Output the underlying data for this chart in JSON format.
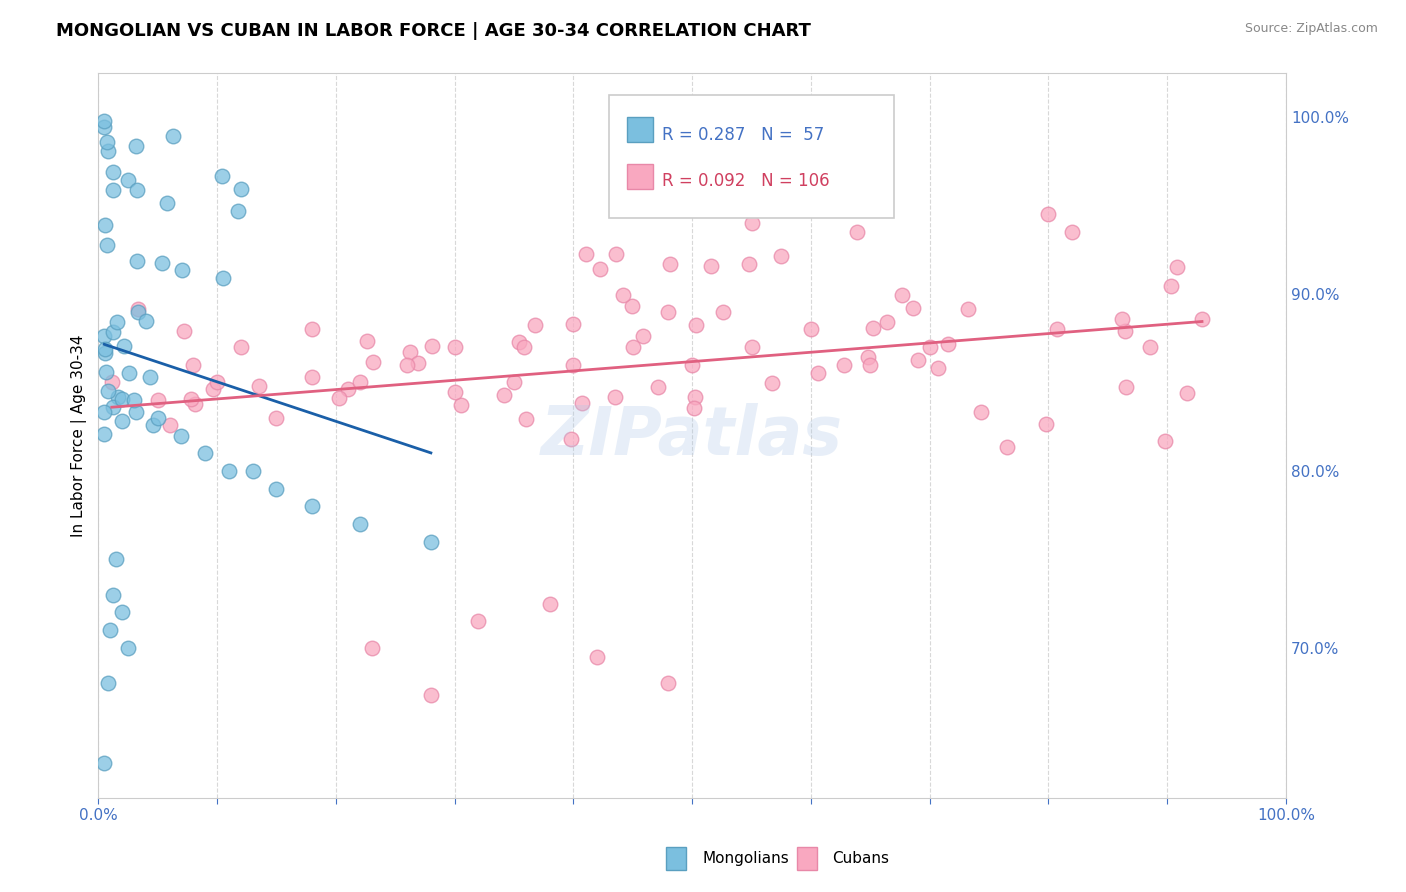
{
  "title": "MONGOLIAN VS CUBAN IN LABOR FORCE | AGE 30-34 CORRELATION CHART",
  "source": "Source: ZipAtlas.com",
  "ylabel": "In Labor Force | Age 30-34",
  "xlim": [
    0.0,
    1.0
  ],
  "ylim": [
    0.615,
    1.025
  ],
  "xticks": [
    0.0,
    0.1,
    0.2,
    0.3,
    0.4,
    0.5,
    0.6,
    0.7,
    0.8,
    0.9,
    1.0
  ],
  "xtick_labels": [
    "0.0%",
    "",
    "",
    "",
    "",
    "",
    "",
    "",
    "",
    "",
    "100.0%"
  ],
  "yticks": [
    0.7,
    0.8,
    0.9,
    1.0
  ],
  "ytick_labels": [
    "70.0%",
    "80.0%",
    "90.0%",
    "100.0%"
  ],
  "mongolian_R": 0.287,
  "mongolian_N": 57,
  "cuban_R": 0.092,
  "cuban_N": 106,
  "mongolian_color": "#7bbfdf",
  "cuban_color": "#f9a8c0",
  "mongolian_edge_color": "#5a9fc0",
  "cuban_edge_color": "#e888a8",
  "mongolian_line_color": "#1a5fa8",
  "cuban_line_color": "#e06080",
  "legend_box_color": "#e8f0f8",
  "legend_border_color": "#c0d0e0",
  "title_fontsize": 13,
  "tick_fontsize": 11,
  "ylabel_fontsize": 11
}
